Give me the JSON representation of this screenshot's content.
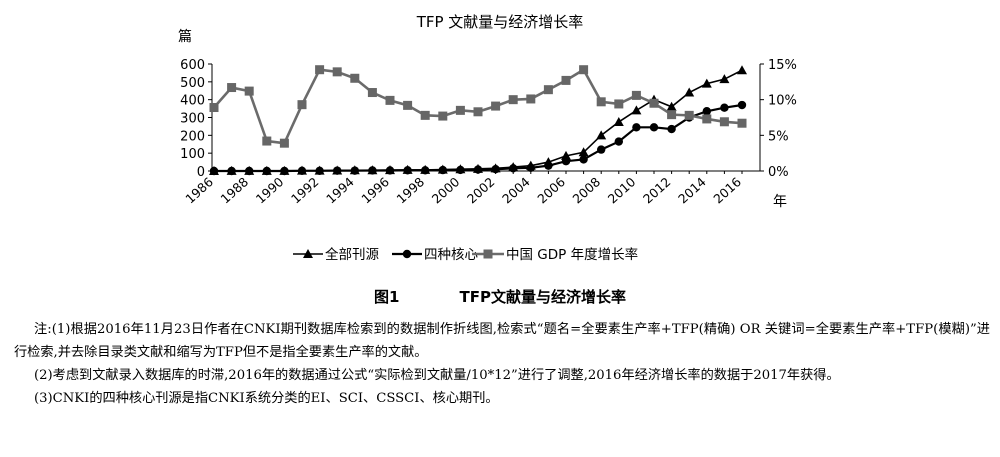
{
  "chart_data": {
    "type": "line",
    "title": "TFP 文献量与经济增长率",
    "left_unit": "篇",
    "x_unit": "年",
    "x": [
      1986,
      1987,
      1988,
      1989,
      1990,
      1991,
      1992,
      1993,
      1994,
      1995,
      1996,
      1997,
      1998,
      1999,
      2000,
      2001,
      2002,
      2003,
      2004,
      2005,
      2006,
      2007,
      2008,
      2009,
      2010,
      2011,
      2012,
      2013,
      2014,
      2015,
      2016
    ],
    "x_ticks": [
      1986,
      1988,
      1990,
      1992,
      1994,
      1996,
      1998,
      2000,
      2002,
      2004,
      2006,
      2008,
      2010,
      2012,
      2014,
      2016
    ],
    "left_ylim": [
      0,
      600
    ],
    "left_yticks": [
      0,
      100,
      200,
      300,
      400,
      500,
      600
    ],
    "right_ylim": [
      0,
      15
    ],
    "right_yticks": [
      "0%",
      "5%",
      "10%",
      "15%"
    ],
    "series": [
      {
        "name": "全部刊源",
        "axis": "left",
        "marker": "triangle",
        "values": [
          0,
          1,
          1,
          1,
          1,
          2,
          2,
          3,
          4,
          4,
          5,
          6,
          6,
          8,
          10,
          12,
          15,
          22,
          30,
          50,
          85,
          105,
          200,
          275,
          340,
          400,
          360,
          440,
          490,
          515,
          565
        ]
      },
      {
        "name": "四种核心",
        "axis": "left",
        "marker": "circle",
        "values": [
          0,
          0,
          0,
          0,
          0,
          1,
          1,
          2,
          2,
          3,
          3,
          4,
          4,
          5,
          6,
          8,
          10,
          15,
          18,
          30,
          55,
          65,
          120,
          165,
          245,
          245,
          235,
          300,
          335,
          355,
          370
        ]
      },
      {
        "name": "中国 GDP 年度增长率",
        "axis": "right",
        "marker": "square",
        "values": [
          8.9,
          11.7,
          11.2,
          4.2,
          3.9,
          9.3,
          14.2,
          13.9,
          13.0,
          11.0,
          9.9,
          9.2,
          7.8,
          7.7,
          8.5,
          8.3,
          9.1,
          10.0,
          10.1,
          11.4,
          12.7,
          14.2,
          9.7,
          9.4,
          10.6,
          9.5,
          7.9,
          7.8,
          7.3,
          6.9,
          6.7
        ]
      }
    ]
  },
  "caption": {
    "number": "图1",
    "title": "TFP文献量与经济增长率"
  },
  "notes": [
    "注:(1)根据2016年11月23日作者在CNKI期刊数据库检索到的数据制作折线图,检索式“题名=全要素生产率+TFP(精确) OR 关键词=全要素生产率+TFP(模糊)”进行检索,并去除目录类文献和缩写为TFP但不是指全要素生产率的文献。",
    "(2)考虑到文献录入数据库的时滞,2016年的数据通过公式“实际检到文献量/10*12”进行了调整,2016年经济增长率的数据于2017年获得。",
    "(3)CNKI的四种核心刊源是指CNKI系统分类的EI、SCI、CSSCI、核心期刊。"
  ]
}
